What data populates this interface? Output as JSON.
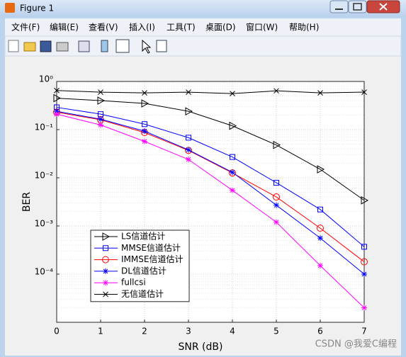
{
  "window": {
    "title": "Figure 1",
    "menu": [
      "文件(F)",
      "编辑(E)",
      "查看(V)",
      "插入(I)",
      "工具(T)",
      "桌面(D)",
      "窗口(W)",
      "帮助(H)"
    ]
  },
  "chart_data": {
    "type": "line",
    "xlabel": "SNR (dB)",
    "ylabel": "BER",
    "x": [
      0,
      1,
      2,
      3,
      4,
      5,
      6,
      7
    ],
    "xlim": [
      0,
      7
    ],
    "xticks": [
      0,
      1,
      2,
      3,
      4,
      5,
      6,
      7
    ],
    "ylim": [
      1e-05,
      1
    ],
    "yscale": "log",
    "yticks": [
      {
        "value": 0.0001,
        "label": "10⁻⁴"
      },
      {
        "value": 0.001,
        "label": "10⁻³"
      },
      {
        "value": 0.01,
        "label": "10⁻²"
      },
      {
        "value": 0.1,
        "label": "10⁻¹"
      },
      {
        "value": 1,
        "label": "10⁰"
      }
    ],
    "grid": true,
    "legend": "lower left",
    "series": [
      {
        "name": "LS信道估计",
        "color": "#000000",
        "marker": "triangle-right",
        "values": [
          0.45,
          0.4,
          0.35,
          0.24,
          0.12,
          0.048,
          0.015,
          0.0034
        ]
      },
      {
        "name": "MMSE信道估计",
        "color": "#0000ff",
        "marker": "square",
        "values": [
          0.29,
          0.21,
          0.13,
          0.068,
          0.027,
          0.0079,
          0.0022,
          0.00037
        ]
      },
      {
        "name": "IMMSE信道估计",
        "color": "#ff0000",
        "marker": "circle",
        "values": [
          0.23,
          0.16,
          0.087,
          0.037,
          0.0126,
          0.004,
          0.0009,
          0.00018
        ]
      },
      {
        "name": "DL信道估计",
        "color": "#0000ff",
        "marker": "asterisk",
        "values": [
          0.24,
          0.165,
          0.093,
          0.038,
          0.013,
          0.0027,
          0.00056,
          0.0001
        ]
      },
      {
        "name": "fullcsi",
        "color": "#ff00ff",
        "marker": "asterisk",
        "values": [
          0.21,
          0.125,
          0.057,
          0.024,
          0.0055,
          0.0012,
          0.00015,
          2e-05
        ]
      },
      {
        "name": "无信道估计",
        "color": "#000000",
        "marker": "x",
        "values": [
          0.65,
          0.6,
          0.58,
          0.6,
          0.56,
          0.64,
          0.58,
          0.6
        ]
      }
    ]
  },
  "watermark": "CSDN @我爱C编程"
}
